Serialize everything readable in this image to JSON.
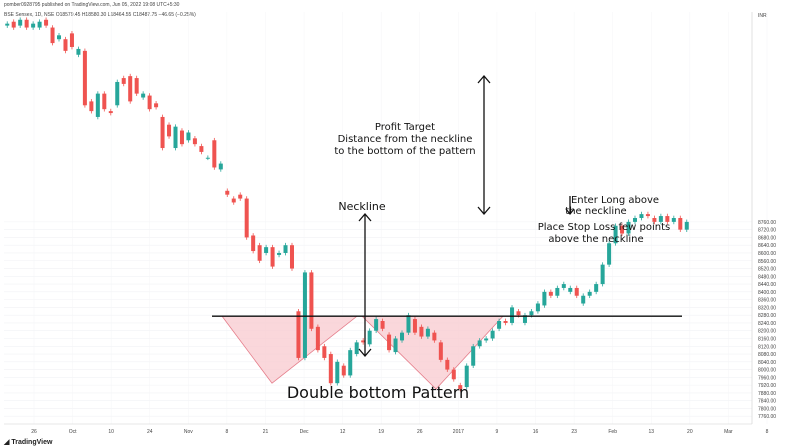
{
  "header": {
    "author_line": "pomber0928795 published on TradingView.com, Jun 05, 2022 19:08 UTC+5:30",
    "symbol_line": "BSE Sensex, 1D, NSE  O18579.45 H18580.30 L18464.55 C18487.75 −46.65 (−0.25%)"
  },
  "annotations": {
    "neckline": "Neckline",
    "profit_target_1": "Profit Target",
    "profit_target_2": "Distance from the neckline",
    "profit_target_3": "to the bottom of the pattern",
    "enter_long_1": "Enter Long above",
    "enter_long_2": "the neckline",
    "stop_loss_1": "Place Stop Loss few points",
    "stop_loss_2": "above the neckline",
    "title": "Double bottom Pattern"
  },
  "brand": "TradingView",
  "colors": {
    "up": "#26a69a",
    "down": "#ef5350",
    "pattern_fill": "#f8c9cf",
    "pattern_stroke": "#e57d8a"
  },
  "chart_data": {
    "type": "candlestick",
    "title": "Double bottom Pattern",
    "currency": "INR",
    "ylim": [
      7720,
      9840
    ],
    "y_ticks": [
      7760,
      7800,
      7840,
      7880,
      7920,
      7960,
      8000,
      8040,
      8080,
      8120,
      8160,
      8200,
      8240,
      8280,
      8320,
      8360,
      8400,
      8440,
      8480,
      8520,
      8560,
      8600,
      8640,
      8680,
      8720,
      8760
    ],
    "x_ticks": [
      "26",
      "Oct",
      "10",
      "24",
      "Nov",
      "8",
      "21",
      "Dec",
      "12",
      "19",
      "26",
      "2017",
      "9",
      "16",
      "23",
      "Feb",
      "13",
      "20",
      "Mar",
      "8"
    ],
    "neckline_level": 8275,
    "candles": [
      {
        "o": 9770,
        "c": 9780
      },
      {
        "o": 9790,
        "c": 9760
      },
      {
        "o": 9770,
        "c": 9800
      },
      {
        "o": 9800,
        "c": 9760
      },
      {
        "o": 9760,
        "c": 9780
      },
      {
        "o": 9760,
        "c": 9790
      },
      {
        "o": 9800,
        "c": 9770
      },
      {
        "o": 9760,
        "c": 9680
      },
      {
        "o": 9700,
        "c": 9720
      },
      {
        "o": 9700,
        "c": 9640
      },
      {
        "o": 9730,
        "c": 9660
      },
      {
        "o": 9620,
        "c": 9650
      },
      {
        "o": 9640,
        "c": 9360
      },
      {
        "o": 9380,
        "c": 9330
      },
      {
        "o": 9300,
        "c": 9420
      },
      {
        "o": 9420,
        "c": 9340
      },
      {
        "o": 9330,
        "c": 9320
      },
      {
        "o": 9360,
        "c": 9480
      },
      {
        "o": 9500,
        "c": 9470
      },
      {
        "o": 9510,
        "c": 9380
      },
      {
        "o": 9500,
        "c": 9420
      },
      {
        "o": 9400,
        "c": 9420
      },
      {
        "o": 9410,
        "c": 9340
      },
      {
        "o": 9370,
        "c": 9350
      },
      {
        "o": 9300,
        "c": 9140
      },
      {
        "o": 9260,
        "c": 9200
      },
      {
        "o": 9140,
        "c": 9250
      },
      {
        "o": 9230,
        "c": 9160
      },
      {
        "o": 9180,
        "c": 9220
      },
      {
        "o": 9190,
        "c": 9160
      },
      {
        "o": 9150,
        "c": 9120
      },
      {
        "o": 9090,
        "c": 9090
      },
      {
        "o": 9180,
        "c": 9040
      },
      {
        "o": 9030,
        "c": 9060
      },
      {
        "o": 8920,
        "c": 8900
      },
      {
        "o": 8880,
        "c": 8860
      },
      {
        "o": 8900,
        "c": 8880
      },
      {
        "o": 8880,
        "c": 8680
      },
      {
        "o": 8690,
        "c": 8610
      },
      {
        "o": 8640,
        "c": 8560
      },
      {
        "o": 8600,
        "c": 8630
      },
      {
        "o": 8630,
        "c": 8530
      },
      {
        "o": 8590,
        "c": 8600
      },
      {
        "o": 8600,
        "c": 8640
      },
      {
        "o": 8640,
        "c": 8520
      },
      {
        "o": 8300,
        "c": 8060
      },
      {
        "o": 8060,
        "c": 8500
      },
      {
        "o": 8500,
        "c": 8210
      },
      {
        "o": 8220,
        "c": 8100
      },
      {
        "o": 8120,
        "c": 8060
      },
      {
        "o": 8080,
        "c": 7930
      },
      {
        "o": 7930,
        "c": 8040
      },
      {
        "o": 8020,
        "c": 7970
      },
      {
        "o": 7970,
        "c": 8100
      },
      {
        "o": 8080,
        "c": 8140
      },
      {
        "o": 8150,
        "c": 8140
      },
      {
        "o": 8130,
        "c": 8200
      },
      {
        "o": 8200,
        "c": 8260
      },
      {
        "o": 8250,
        "c": 8210
      },
      {
        "o": 8180,
        "c": 8100
      },
      {
        "o": 8090,
        "c": 8160
      },
      {
        "o": 8150,
        "c": 8190
      },
      {
        "o": 8190,
        "c": 8280
      },
      {
        "o": 8260,
        "c": 8190
      },
      {
        "o": 8220,
        "c": 8170
      },
      {
        "o": 8170,
        "c": 8210
      },
      {
        "o": 8190,
        "c": 8150
      },
      {
        "o": 8140,
        "c": 8050
      },
      {
        "o": 8050,
        "c": 8000
      },
      {
        "o": 8000,
        "c": 7950
      },
      {
        "o": 7920,
        "c": 7900
      },
      {
        "o": 7910,
        "c": 8020
      },
      {
        "o": 8020,
        "c": 8120
      },
      {
        "o": 8120,
        "c": 8150
      },
      {
        "o": 8150,
        "c": 8160
      },
      {
        "o": 8160,
        "c": 8200
      },
      {
        "o": 8210,
        "c": 8250
      },
      {
        "o": 8250,
        "c": 8240
      },
      {
        "o": 8240,
        "c": 8320
      },
      {
        "o": 8300,
        "c": 8280
      },
      {
        "o": 8240,
        "c": 8280
      },
      {
        "o": 8280,
        "c": 8300
      },
      {
        "o": 8300,
        "c": 8340
      },
      {
        "o": 8330,
        "c": 8400
      },
      {
        "o": 8400,
        "c": 8380
      },
      {
        "o": 8380,
        "c": 8420
      },
      {
        "o": 8420,
        "c": 8440
      },
      {
        "o": 8400,
        "c": 8420
      },
      {
        "o": 8420,
        "c": 8380
      },
      {
        "o": 8340,
        "c": 8380
      },
      {
        "o": 8380,
        "c": 8400
      },
      {
        "o": 8400,
        "c": 8440
      },
      {
        "o": 8440,
        "c": 8540
      },
      {
        "o": 8540,
        "c": 8650
      },
      {
        "o": 8650,
        "c": 8740
      },
      {
        "o": 8740,
        "c": 8700
      },
      {
        "o": 8700,
        "c": 8760
      },
      {
        "o": 8760,
        "c": 8780
      },
      {
        "o": 8780,
        "c": 8800
      },
      {
        "o": 8800,
        "c": 8790
      },
      {
        "o": 8780,
        "c": 8760
      },
      {
        "o": 8760,
        "c": 8790
      },
      {
        "o": 8790,
        "c": 8760
      },
      {
        "o": 8760,
        "c": 8780
      },
      {
        "o": 8780,
        "c": 8720
      },
      {
        "o": 8720,
        "c": 8760
      }
    ]
  }
}
